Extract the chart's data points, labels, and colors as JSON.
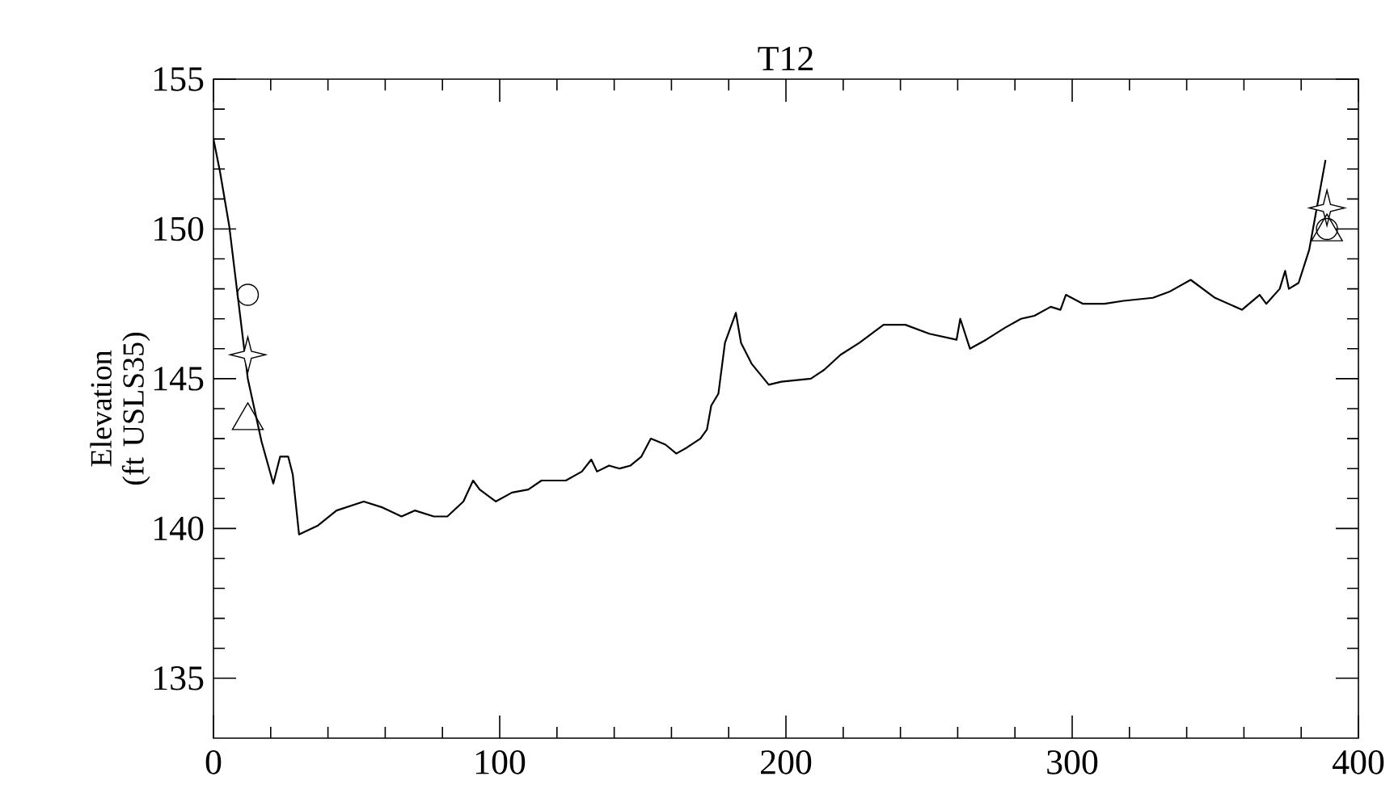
{
  "chart_data": {
    "type": "line",
    "title": "T12",
    "ylabel": "Elevation (ft USLS35)",
    "xlim": [
      0,
      400
    ],
    "xticks": [
      0,
      100,
      200,
      300,
      400
    ],
    "ylim": [
      133,
      155
    ],
    "yticks": [
      135,
      140,
      145,
      150,
      155
    ],
    "series": [
      {
        "color": "#000000",
        "marker": "none",
        "x": [
          0,
          2.3,
          5.5,
          8.3,
          12,
          16.8,
          20.9,
          23.3,
          26.1,
          27.7,
          29.9,
          36.5,
          43,
          52.5,
          59.1,
          65.7,
          70.4,
          77,
          81.7,
          87.3,
          90.7,
          93,
          98.6,
          104.3,
          110,
          114.6,
          123.1,
          128.7,
          132,
          134,
          138.2,
          141.9,
          145.7,
          149.5,
          152.8,
          157.9,
          161.7,
          165.4,
          170.1,
          172.4,
          173.9,
          176.4,
          178.7,
          182.5,
          184.3,
          188,
          194,
          198.4,
          208.7,
          213.4,
          219.1,
          225.7,
          234.1,
          241.7,
          250.1,
          259.6,
          260.9,
          264.3,
          269.9,
          276.5,
          282.1,
          286.8,
          292.5,
          295.9,
          297.8,
          303.8,
          311.3,
          317.9,
          328.2,
          333.9,
          341.4,
          349.9,
          359.3,
          365.5,
          367.8,
          372.5,
          374.4,
          375.7,
          379.1,
          382.8,
          388.5
        ],
        "values": [
          153.0,
          151.9,
          150.1,
          147.9,
          145.0,
          142.9,
          141.5,
          142.4,
          142.4,
          141.8,
          139.8,
          140.1,
          140.6,
          140.9,
          140.7,
          140.4,
          140.6,
          140.4,
          140.4,
          140.9,
          141.6,
          141.3,
          140.9,
          141.2,
          141.3,
          141.6,
          141.6,
          141.9,
          142.3,
          141.9,
          142.1,
          142.0,
          142.1,
          142.4,
          143.0,
          142.8,
          142.5,
          142.7,
          143.0,
          143.3,
          144.1,
          144.5,
          146.2,
          147.2,
          146.2,
          145.5,
          144.8,
          144.9,
          145.0,
          145.3,
          145.8,
          146.2,
          146.8,
          146.8,
          146.5,
          146.3,
          147.0,
          146.0,
          146.3,
          146.7,
          147.0,
          147.1,
          147.4,
          147.3,
          147.8,
          147.5,
          147.5,
          147.6,
          147.7,
          147.9,
          148.3,
          147.7,
          147.3,
          147.8,
          147.5,
          148.0,
          148.6,
          148.0,
          148.2,
          149.3,
          152.3
        ]
      },
      {
        "type": "scatter",
        "color": "#000000",
        "marker": "circle",
        "x": [
          12
        ],
        "values": [
          147.8
        ]
      },
      {
        "type": "scatter",
        "color": "#000000",
        "marker": "star",
        "x": [
          12,
          389
        ],
        "values": [
          145.8,
          150.7
        ]
      },
      {
        "type": "scatter",
        "color": "#000000",
        "marker": "triangle",
        "x": [
          12,
          389
        ],
        "values": [
          143.6,
          149.9
        ]
      },
      {
        "type": "scatter",
        "color": "#000000",
        "marker": "circle",
        "x": [
          389
        ],
        "values": [
          150.0
        ]
      }
    ]
  }
}
